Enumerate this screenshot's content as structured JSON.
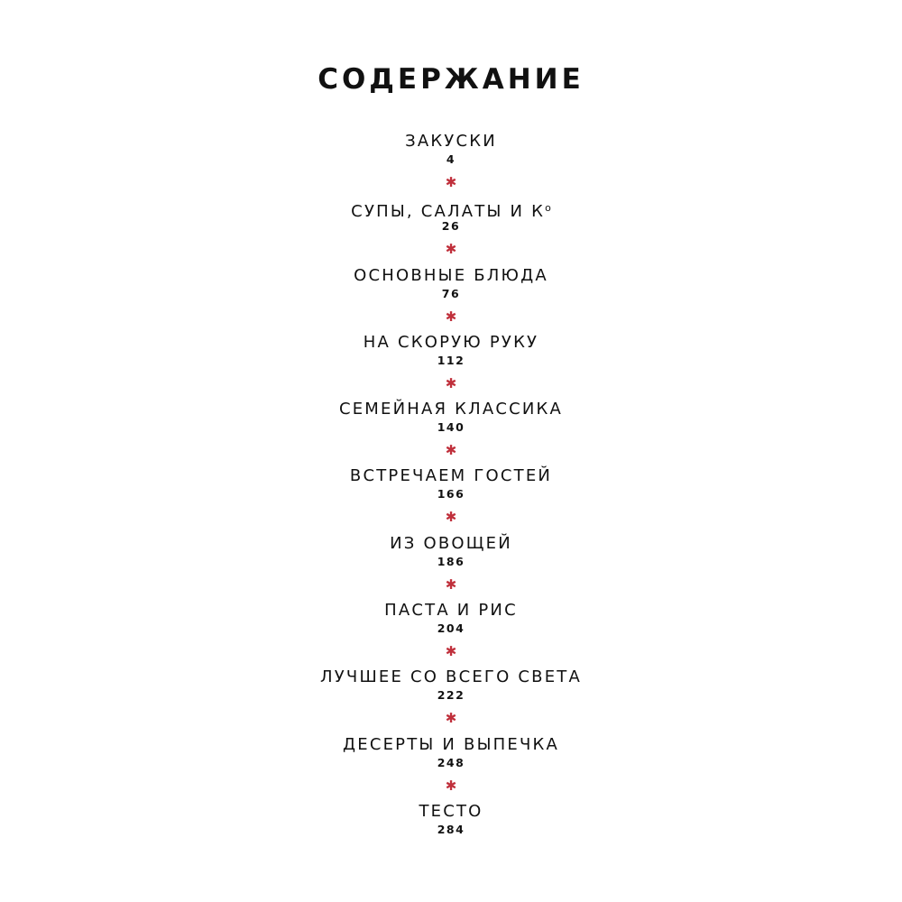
{
  "title": "СОДЕРЖАНИЕ",
  "accent_color": "#c0303c",
  "separator_icon": "asterisk",
  "separator_glyph": "✱",
  "items": [
    {
      "label": "ЗАКУСКИ",
      "sup": "",
      "page": "4"
    },
    {
      "label": "СУПЫ, САЛАТЫ И К",
      "sup": "о",
      "page": "26"
    },
    {
      "label": "ОСНОВНЫЕ БЛЮДА",
      "sup": "",
      "page": "76"
    },
    {
      "label": "НА СКОРУЮ РУКУ",
      "sup": "",
      "page": "112"
    },
    {
      "label": "СЕМЕЙНАЯ КЛАССИКА",
      "sup": "",
      "page": "140"
    },
    {
      "label": "ВСТРЕЧАЕМ ГОСТЕЙ",
      "sup": "",
      "page": "166"
    },
    {
      "label": "ИЗ ОВОЩЕЙ",
      "sup": "",
      "page": "186"
    },
    {
      "label": "ПАСТА И РИС",
      "sup": "",
      "page": "204"
    },
    {
      "label": "ЛУЧШЕЕ СО ВСЕГО СВЕТА",
      "sup": "",
      "page": "222"
    },
    {
      "label": "ДЕСЕРТЫ И ВЫПЕЧКА",
      "sup": "",
      "page": "248"
    },
    {
      "label": "ТЕСТО",
      "sup": "",
      "page": "284"
    }
  ]
}
